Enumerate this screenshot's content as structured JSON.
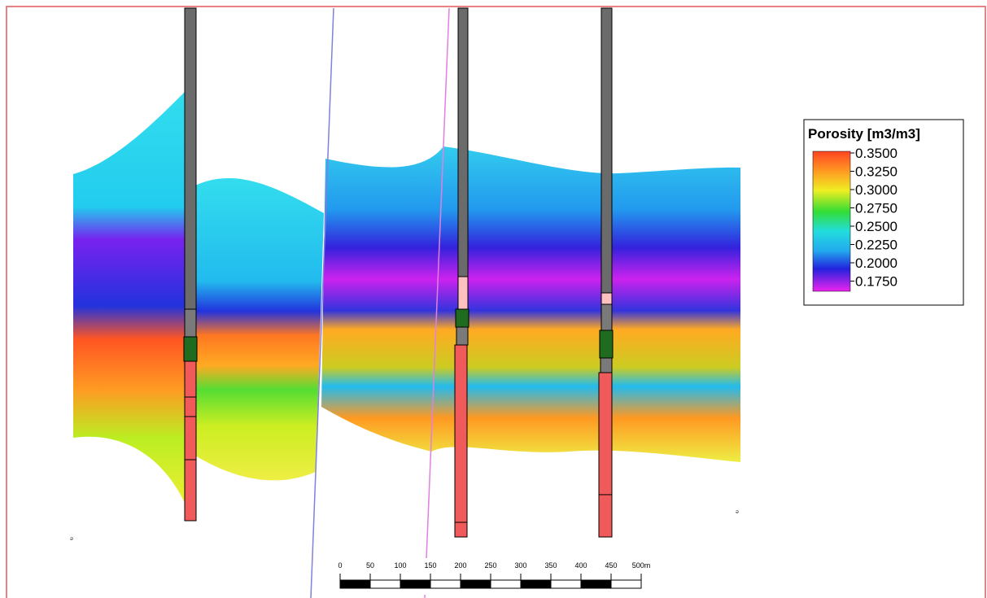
{
  "legend": {
    "title": "Porosity [m3/m3]",
    "ticks": [
      "0.3500",
      "0.3250",
      "0.3000",
      "0.2750",
      "0.2500",
      "0.2250",
      "0.2000",
      "0.1750"
    ]
  },
  "scalebar": {
    "labels": [
      "0",
      "50",
      "100",
      "150",
      "200",
      "250",
      "300",
      "350",
      "400",
      "450",
      "500m"
    ]
  },
  "colors": {
    "frame": "#e05a5a",
    "background": "#ffffff",
    "fault_left": "#8080e0",
    "fault_right": "#e080e0",
    "well_casing": "#6b6b6b",
    "well_zone_green": "#1f6b1f",
    "well_perforation": "#f05a5a",
    "well_band_pink": "#ffc0c0",
    "colormap": [
      "#e3f",
      "#23d",
      "#1ee",
      "#3d3",
      "#ee1",
      "#f80",
      "#f40"
    ]
  }
}
